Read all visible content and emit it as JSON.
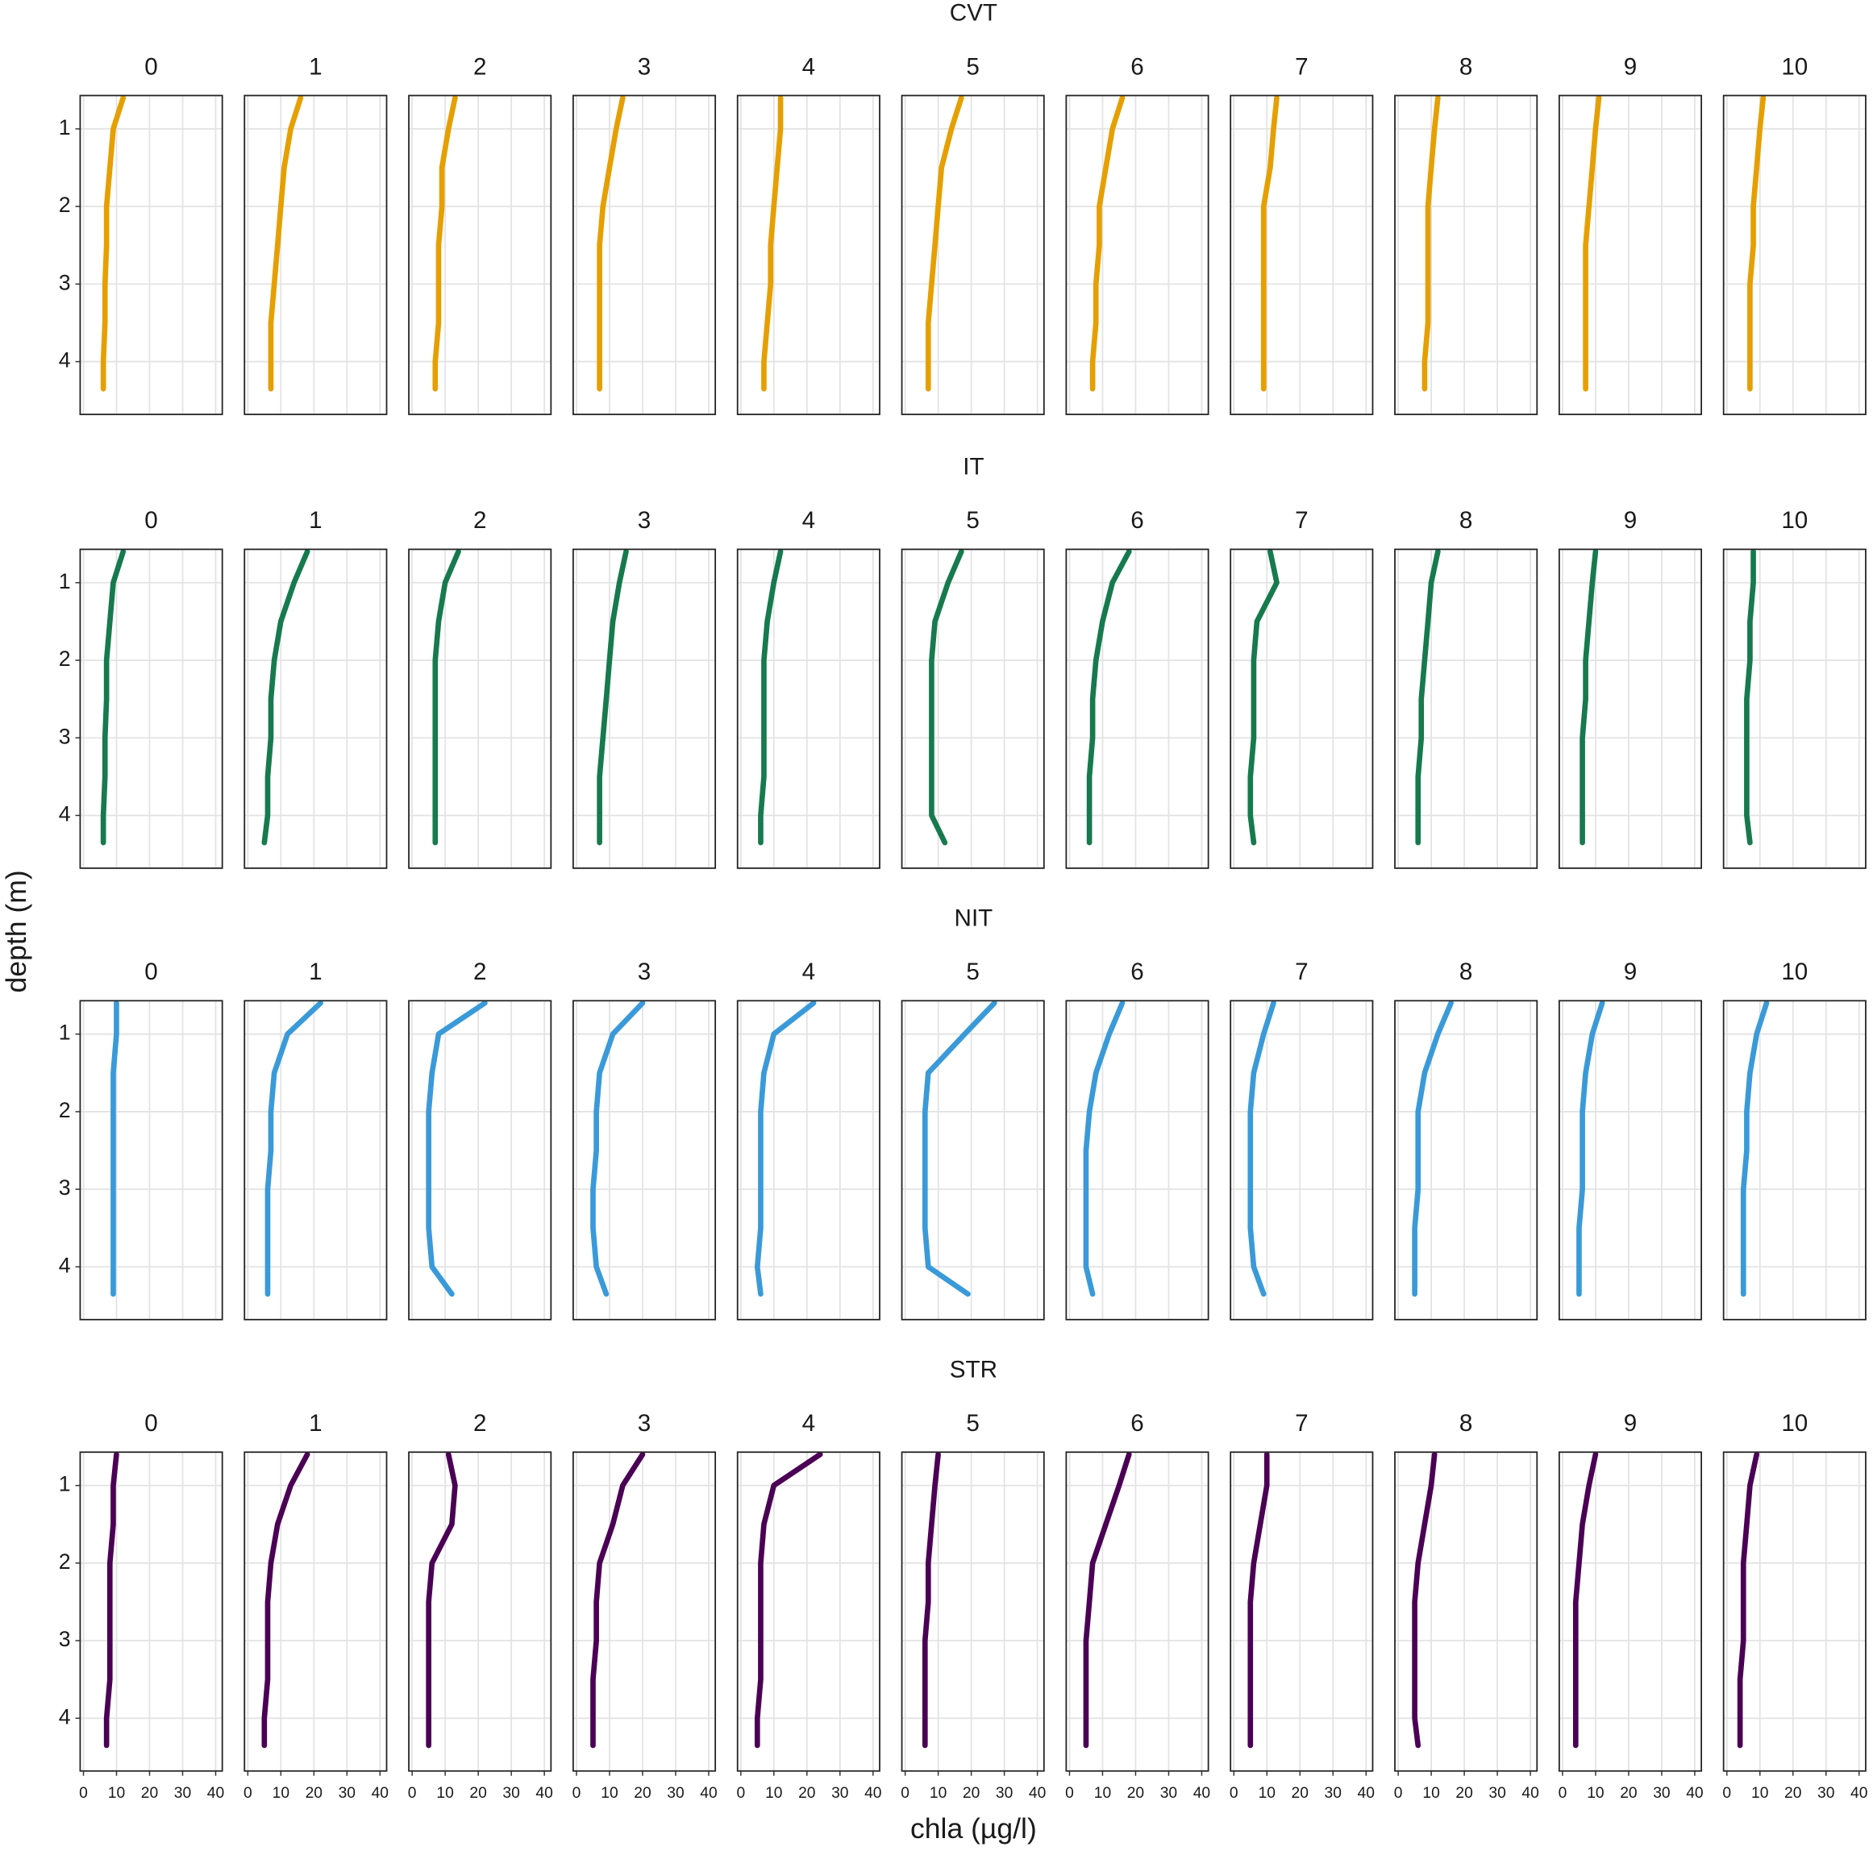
{
  "chart_data": {
    "type": "line",
    "x_label": "chla (µg/l)",
    "y_label": "depth (m)",
    "xlim": [
      -1,
      42
    ],
    "ylim": [
      0.57,
      4.68
    ],
    "y_reversed": true,
    "xticks": [
      0,
      10,
      20,
      30,
      40
    ],
    "yticks": [
      1,
      2,
      3,
      4
    ],
    "grid": true,
    "depth": [
      0.6,
      1,
      1.5,
      2,
      2.5,
      3,
      3.5,
      4,
      4.35
    ],
    "facets": [
      {
        "title": "CVT",
        "color": "#e69f00",
        "panels": [
          {
            "label": "0",
            "chla": [
              12,
              9,
              8,
              7,
              7,
              6.5,
              6.5,
              6,
              6
            ]
          },
          {
            "label": "1",
            "chla": [
              16,
              13,
              11,
              10,
              9,
              8,
              7,
              7,
              7
            ]
          },
          {
            "label": "2",
            "chla": [
              13,
              11,
              9,
              9,
              8,
              8,
              8,
              7,
              7
            ]
          },
          {
            "label": "3",
            "chla": [
              14,
              12,
              10,
              8,
              7,
              7,
              7,
              7,
              7
            ]
          },
          {
            "label": "4",
            "chla": [
              12,
              12,
              11,
              10,
              9,
              9,
              8,
              7,
              7
            ]
          },
          {
            "label": "5",
            "chla": [
              17,
              14,
              11,
              10,
              9,
              8,
              7,
              7,
              7
            ]
          },
          {
            "label": "6",
            "chla": [
              16,
              13,
              11,
              9,
              9,
              8,
              8,
              7,
              7
            ]
          },
          {
            "label": "7",
            "chla": [
              13,
              12,
              11,
              9,
              9,
              9,
              9,
              9,
              9
            ]
          },
          {
            "label": "8",
            "chla": [
              12,
              11,
              10,
              9,
              9,
              9,
              9,
              8,
              8
            ]
          },
          {
            "label": "9",
            "chla": [
              11,
              10,
              9,
              8,
              7,
              7,
              7,
              7,
              7
            ]
          },
          {
            "label": "10",
            "chla": [
              11,
              10,
              9,
              8,
              8,
              7,
              7,
              7,
              7
            ]
          }
        ]
      },
      {
        "title": "IT",
        "color": "#167a4e",
        "panels": [
          {
            "label": "0",
            "chla": [
              12,
              9,
              8,
              7,
              7,
              6.5,
              6.5,
              6,
              6
            ]
          },
          {
            "label": "1",
            "chla": [
              18,
              14,
              10,
              8,
              7,
              7,
              6,
              6,
              5
            ]
          },
          {
            "label": "2",
            "chla": [
              14,
              10,
              8,
              7,
              7,
              7,
              7,
              7,
              7
            ]
          },
          {
            "label": "3",
            "chla": [
              15,
              13,
              11,
              10,
              9,
              8,
              7,
              7,
              7
            ]
          },
          {
            "label": "4",
            "chla": [
              12,
              10,
              8,
              7,
              7,
              7,
              7,
              6,
              6
            ]
          },
          {
            "label": "5",
            "chla": [
              17,
              13,
              9,
              8,
              8,
              8,
              8,
              8,
              12
            ]
          },
          {
            "label": "6",
            "chla": [
              18,
              13,
              10,
              8,
              7,
              7,
              6,
              6,
              6
            ]
          },
          {
            "label": "7",
            "chla": [
              11,
              13,
              7,
              6,
              6,
              6,
              5,
              5,
              6
            ]
          },
          {
            "label": "8",
            "chla": [
              12,
              10,
              9,
              8,
              7,
              7,
              6,
              6,
              6
            ]
          },
          {
            "label": "9",
            "chla": [
              10,
              9,
              8,
              7,
              7,
              6,
              6,
              6,
              6
            ]
          },
          {
            "label": "10",
            "chla": [
              8,
              8,
              7,
              7,
              6,
              6,
              6,
              6,
              7
            ]
          }
        ]
      },
      {
        "title": "NIT",
        "color": "#3a9ad9",
        "panels": [
          {
            "label": "0",
            "chla": [
              10,
              10,
              9,
              9,
              9,
              9,
              9,
              9,
              9
            ]
          },
          {
            "label": "1",
            "chla": [
              22,
              12,
              8,
              7,
              7,
              6,
              6,
              6,
              6
            ]
          },
          {
            "label": "2",
            "chla": [
              22,
              8,
              6,
              5,
              5,
              5,
              5,
              6,
              12
            ]
          },
          {
            "label": "3",
            "chla": [
              20,
              11,
              7,
              6,
              6,
              5,
              5,
              6,
              9
            ]
          },
          {
            "label": "4",
            "chla": [
              22,
              10,
              7,
              6,
              6,
              6,
              6,
              5,
              6
            ]
          },
          {
            "label": "5",
            "chla": [
              27,
              18,
              7,
              6,
              6,
              6,
              6,
              7,
              19
            ]
          },
          {
            "label": "6",
            "chla": [
              16,
              12,
              8,
              6,
              5,
              5,
              5,
              5,
              7
            ]
          },
          {
            "label": "7",
            "chla": [
              12,
              9,
              6,
              5,
              5,
              5,
              5,
              6,
              9
            ]
          },
          {
            "label": "8",
            "chla": [
              16,
              12,
              8,
              6,
              6,
              6,
              5,
              5,
              5
            ]
          },
          {
            "label": "9",
            "chla": [
              12,
              9,
              7,
              6,
              6,
              6,
              5,
              5,
              5
            ]
          },
          {
            "label": "10",
            "chla": [
              12,
              9,
              7,
              6,
              6,
              5,
              5,
              5,
              5
            ]
          }
        ]
      },
      {
        "title": "STR",
        "color": "#4b0055",
        "panels": [
          {
            "label": "0",
            "chla": [
              10,
              9,
              9,
              8,
              8,
              8,
              8,
              7,
              7
            ]
          },
          {
            "label": "1",
            "chla": [
              18,
              13,
              9,
              7,
              6,
              6,
              6,
              5,
              5
            ]
          },
          {
            "label": "2",
            "chla": [
              11,
              13,
              12,
              6,
              5,
              5,
              5,
              5,
              5
            ]
          },
          {
            "label": "3",
            "chla": [
              20,
              14,
              11,
              7,
              6,
              6,
              5,
              5,
              5
            ]
          },
          {
            "label": "4",
            "chla": [
              24,
              10,
              7,
              6,
              6,
              6,
              6,
              5,
              5
            ]
          },
          {
            "label": "5",
            "chla": [
              10,
              9,
              8,
              7,
              7,
              6,
              6,
              6,
              6
            ]
          },
          {
            "label": "6",
            "chla": [
              18,
              15,
              11,
              7,
              6,
              5,
              5,
              5,
              5
            ]
          },
          {
            "label": "7",
            "chla": [
              10,
              10,
              8,
              6,
              5,
              5,
              5,
              5,
              5
            ]
          },
          {
            "label": "8",
            "chla": [
              11,
              10,
              8,
              6,
              5,
              5,
              5,
              5,
              6
            ]
          },
          {
            "label": "9",
            "chla": [
              10,
              8,
              6,
              5,
              4,
              4,
              4,
              4,
              4
            ]
          },
          {
            "label": "10",
            "chla": [
              9,
              7,
              6,
              5,
              5,
              5,
              4,
              4,
              4
            ]
          }
        ]
      }
    ]
  }
}
